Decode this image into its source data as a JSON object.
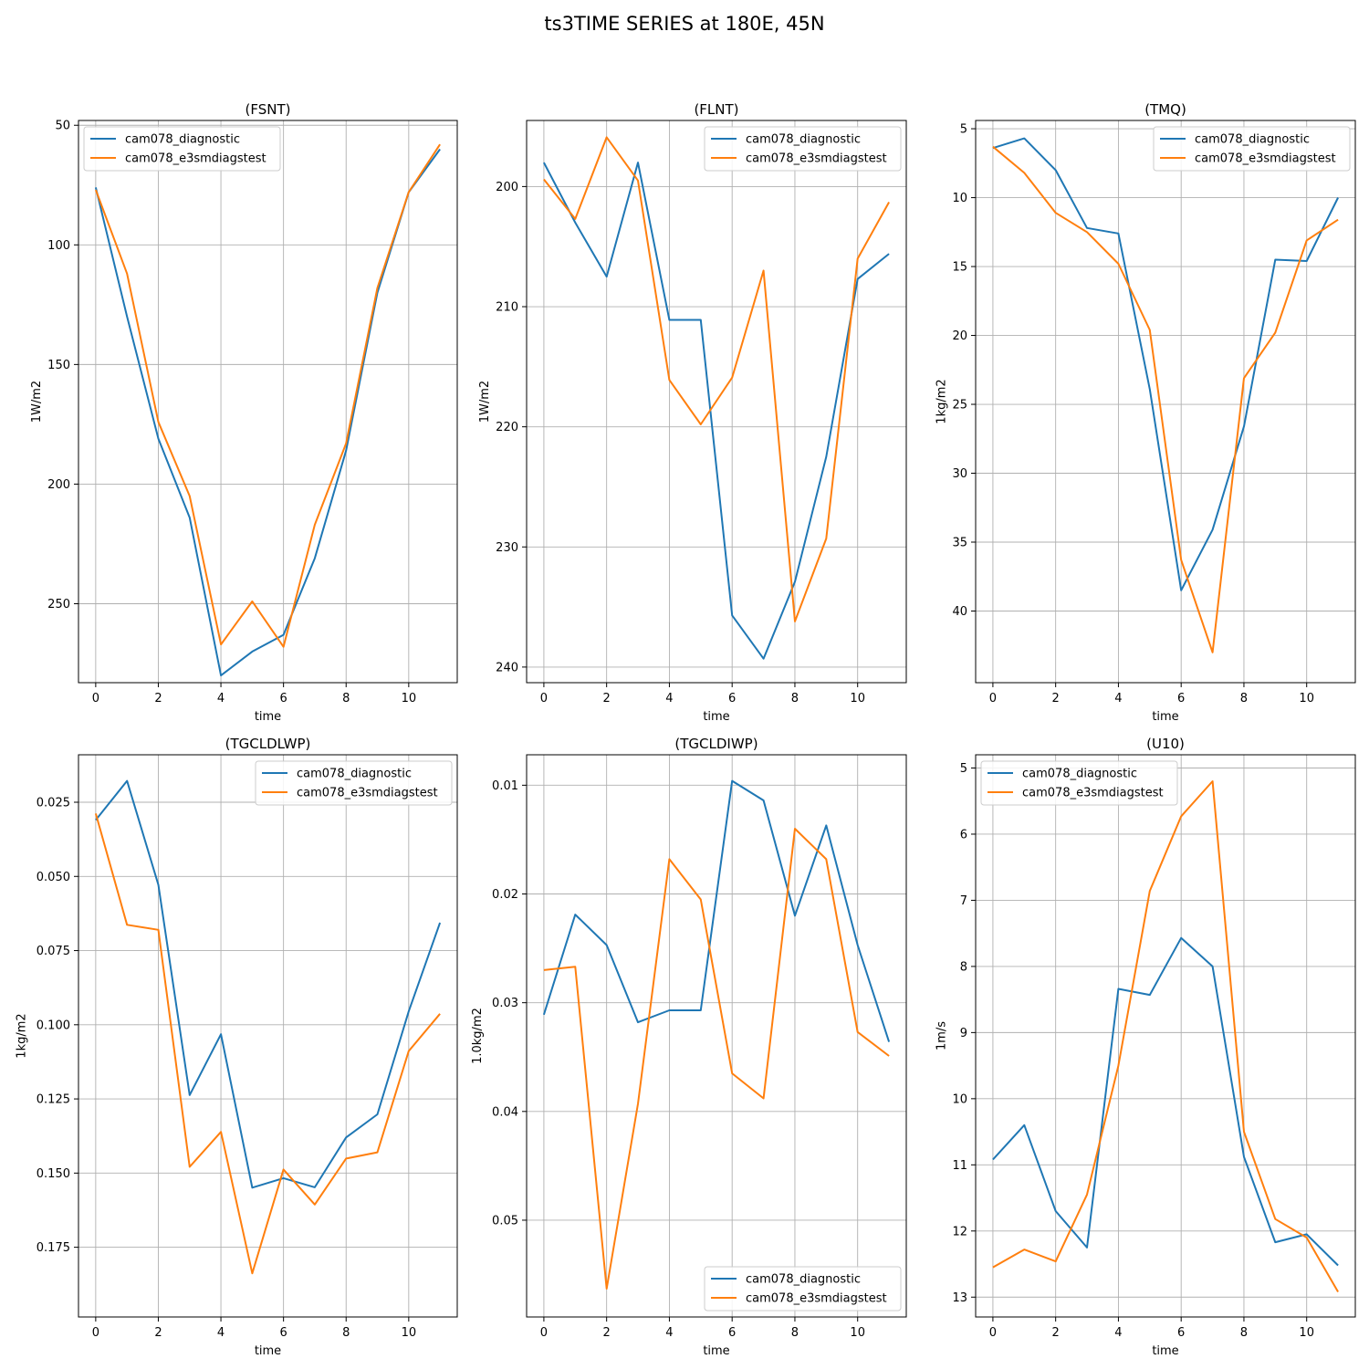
{
  "suptitle": "ts3TIME SERIES at 180E, 45N",
  "colors": {
    "diagnostic": "#1f77b4",
    "e3smdiagstest": "#ff7f0e",
    "grid": "#b0b0b0"
  },
  "chart_data": [
    {
      "type": "line",
      "title": "(FSNT)",
      "xlabel": "time",
      "ylabel": "1W/m2",
      "x": [
        0,
        1,
        2,
        3,
        4,
        5,
        6,
        7,
        8,
        9,
        10,
        11
      ],
      "xlim": [
        -0.55,
        11.55
      ],
      "xticks": [
        0,
        2,
        4,
        6,
        8,
        10
      ],
      "ylim": [
        48,
        283
      ],
      "yinverted": true,
      "yticks": [
        50,
        100,
        150,
        200,
        250
      ],
      "grid": true,
      "legend": "upper-left",
      "series": [
        {
          "name": "cam078_diagnostic",
          "values": [
            76,
            130,
            181,
            214,
            280,
            270,
            263,
            231,
            186,
            120,
            78,
            60
          ]
        },
        {
          "name": "cam078_e3smdiagstest",
          "values": [
            77,
            112,
            174,
            205,
            267,
            249,
            268,
            217,
            183,
            118,
            78,
            58
          ]
        }
      ]
    },
    {
      "type": "line",
      "title": "(FLNT)",
      "xlabel": "time",
      "ylabel": "1W/m2",
      "x": [
        0,
        1,
        2,
        3,
        4,
        5,
        6,
        7,
        8,
        9,
        10,
        11
      ],
      "xlim": [
        -0.55,
        11.55
      ],
      "xticks": [
        0,
        2,
        4,
        6,
        8,
        10
      ],
      "ylim": [
        194.5,
        241.3
      ],
      "yinverted": true,
      "yticks": [
        200,
        210,
        220,
        230,
        240
      ],
      "grid": true,
      "legend": "upper-right",
      "series": [
        {
          "name": "cam078_diagnostic",
          "values": [
            198,
            203,
            207.5,
            198,
            211.1,
            211.1,
            235.7,
            239.3,
            232.9,
            222.5,
            207.7,
            205.6
          ]
        },
        {
          "name": "cam078_e3smdiagstest",
          "values": [
            199.4,
            202.7,
            195.9,
            199.5,
            216.1,
            219.8,
            215.9,
            207,
            236.2,
            229.3,
            206,
            201.3
          ]
        }
      ]
    },
    {
      "type": "line",
      "title": "(TMQ)",
      "xlabel": "time",
      "ylabel": "1kg/m2",
      "x": [
        0,
        1,
        2,
        3,
        4,
        5,
        6,
        7,
        8,
        9,
        10,
        11
      ],
      "xlim": [
        -0.55,
        11.55
      ],
      "xticks": [
        0,
        2,
        4,
        6,
        8,
        10
      ],
      "ylim": [
        4.4,
        45.2
      ],
      "yinverted": true,
      "yticks": [
        5,
        10,
        15,
        20,
        25,
        30,
        35,
        40
      ],
      "grid": true,
      "legend": "upper-right",
      "series": [
        {
          "name": "cam078_diagnostic",
          "values": [
            6.4,
            5.7,
            8,
            12.2,
            12.6,
            23.9,
            38.5,
            34.1,
            26.6,
            14.5,
            14.6,
            10
          ]
        },
        {
          "name": "cam078_e3smdiagstest",
          "values": [
            6.3,
            8.2,
            11.1,
            12.5,
            14.8,
            19.6,
            36.3,
            43,
            23.1,
            19.8,
            13.1,
            11.6
          ]
        }
      ]
    },
    {
      "type": "line",
      "title": "(TGCLDLWP)",
      "xlabel": "time",
      "ylabel": "1kg/m2",
      "x": [
        0,
        1,
        2,
        3,
        4,
        5,
        6,
        7,
        8,
        9,
        10,
        11
      ],
      "xlim": [
        -0.55,
        11.55
      ],
      "xticks": [
        0,
        2,
        4,
        6,
        8,
        10
      ],
      "ylim": [
        0.009,
        0.1985
      ],
      "yinverted": true,
      "yticks": [
        0.025,
        0.05,
        0.075,
        0.1,
        0.125,
        0.15,
        0.175
      ],
      "ytick_labels": [
        "0.025",
        "0.050",
        "0.075",
        "0.100",
        "0.125",
        "0.150",
        "0.175"
      ],
      "grid": true,
      "legend": "upper-right",
      "series": [
        {
          "name": "cam078_diagnostic",
          "values": [
            0.031,
            0.0178,
            0.0528,
            0.1237,
            0.1032,
            0.1549,
            0.1517,
            0.1548,
            0.138,
            0.1302,
            0.0955,
            0.0656
          ]
        },
        {
          "name": "cam078_e3smdiagstest",
          "values": [
            0.0288,
            0.0663,
            0.068,
            0.1479,
            0.1361,
            0.1838,
            0.1488,
            0.1606,
            0.1451,
            0.143,
            0.1089,
            0.0963
          ]
        }
      ]
    },
    {
      "type": "line",
      "title": "(TGCLDIWP)",
      "xlabel": "time",
      "ylabel": "1.0kg/m2",
      "x": [
        0,
        1,
        2,
        3,
        4,
        5,
        6,
        7,
        8,
        9,
        10,
        11
      ],
      "xlim": [
        -0.55,
        11.55
      ],
      "xticks": [
        0,
        2,
        4,
        6,
        8,
        10
      ],
      "ylim": [
        0.0072,
        0.0589
      ],
      "yinverted": true,
      "yticks": [
        0.01,
        0.02,
        0.03,
        0.04,
        0.05
      ],
      "ytick_labels": [
        "0.01",
        "0.02",
        "0.03",
        "0.04",
        "0.05"
      ],
      "grid": true,
      "legend": "lower-right",
      "series": [
        {
          "name": "cam078_diagnostic",
          "values": [
            0.0311,
            0.0219,
            0.0247,
            0.0318,
            0.0307,
            0.0307,
            0.0096,
            0.0114,
            0.022,
            0.0137,
            0.0247,
            0.0336
          ]
        },
        {
          "name": "cam078_e3smdiagstest",
          "values": [
            0.027,
            0.0267,
            0.0563,
            0.0393,
            0.0168,
            0.0205,
            0.0365,
            0.0388,
            0.014,
            0.0168,
            0.0327,
            0.0349
          ]
        }
      ]
    },
    {
      "type": "line",
      "title": "(U10)",
      "xlabel": "time",
      "ylabel": "1m/s",
      "x": [
        0,
        1,
        2,
        3,
        4,
        5,
        6,
        7,
        8,
        9,
        10,
        11
      ],
      "xlim": [
        -0.55,
        11.55
      ],
      "xticks": [
        0,
        2,
        4,
        6,
        8,
        10
      ],
      "ylim": [
        4.8,
        13.3
      ],
      "yinverted": true,
      "yticks": [
        5,
        6,
        7,
        8,
        9,
        10,
        11,
        12,
        13
      ],
      "grid": true,
      "legend": "upper-left",
      "series": [
        {
          "name": "cam078_diagnostic",
          "values": [
            10.92,
            10.4,
            11.7,
            12.25,
            8.34,
            8.43,
            7.57,
            8,
            10.88,
            12.17,
            12.05,
            12.52
          ]
        },
        {
          "name": "cam078_e3smdiagstest",
          "values": [
            12.55,
            12.28,
            12.46,
            11.45,
            9.5,
            6.86,
            5.73,
            5.2,
            10.5,
            11.82,
            12.1,
            12.92
          ]
        }
      ]
    }
  ]
}
